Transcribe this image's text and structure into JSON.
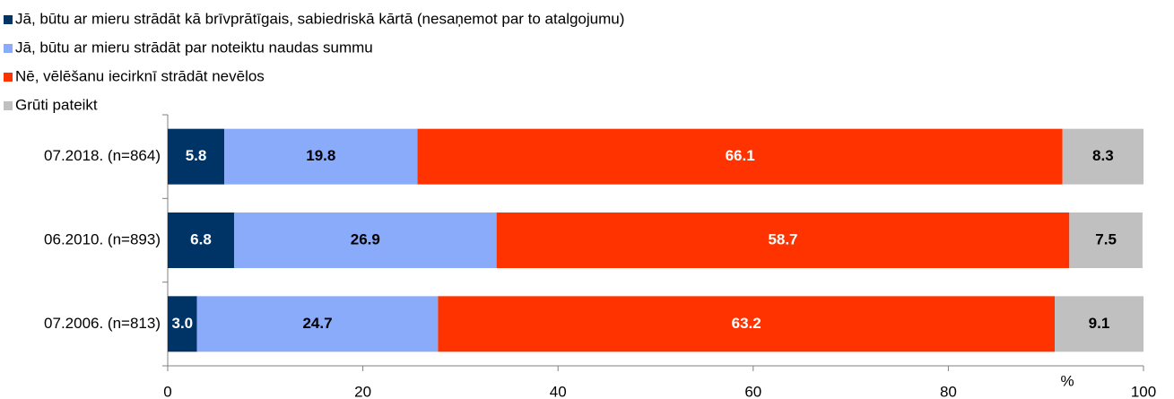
{
  "chart_data": {
    "type": "stacked-barh",
    "categories": [
      "07.2018. (n=864)",
      "06.2010. (n=893)",
      "07.2006. (n=813)"
    ],
    "series": [
      {
        "name": "Jā, būtu ar mieru strādāt kā brīvprātīgais, sabiedriskā kārtā (nesaņemot par to atalgojumu)",
        "color": "#003466",
        "values": [
          5.8,
          6.8,
          3.0
        ],
        "value_labels": [
          "5.8",
          "6.8",
          "3.0"
        ]
      },
      {
        "name": "Jā, būtu ar mieru strādāt par noteiktu naudas summu",
        "color": "#8aabfa",
        "values": [
          19.8,
          26.9,
          24.7
        ]
      },
      {
        "name": "Nē, vēlēšanu iecirknī strādāt nevēlos",
        "color": "#ff3300",
        "values": [
          66.1,
          58.7,
          63.2
        ]
      },
      {
        "name": "Grūti pateikt",
        "color": "#c0c0c0",
        "values": [
          8.3,
          7.5,
          9.1
        ]
      }
    ],
    "xlabel": "%",
    "xlim": [
      0,
      100
    ],
    "xticks": [
      0,
      20,
      40,
      60,
      80,
      100
    ],
    "legend": "top-left"
  }
}
